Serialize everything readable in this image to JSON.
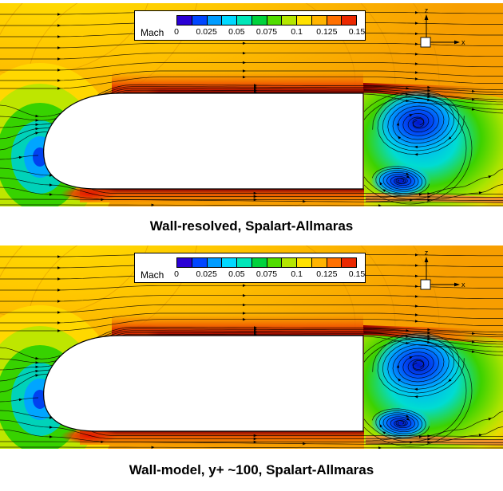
{
  "figure": {
    "colorbar": {
      "label": "Mach",
      "ticks": [
        "0",
        "0.025",
        "0.05",
        "0.075",
        "0.1",
        "0.125",
        "0.15"
      ],
      "segment_colors": [
        "#2A00D5",
        "#0046FF",
        "#009CFF",
        "#00D8FF",
        "#00E6B8",
        "#00D23C",
        "#50DC00",
        "#B4E600",
        "#FFE100",
        "#FFB400",
        "#FF7000",
        "#EB2800"
      ]
    },
    "axis_indicator": {
      "vertical": "z",
      "horizontal": "x"
    },
    "panels": [
      {
        "caption": "Wall-resolved, Spalart-Allmaras"
      },
      {
        "caption": "Wall-model, y+ ~100, Spalart-Allmaras"
      }
    ]
  },
  "chart_data": [
    {
      "type": "heatmap",
      "title": "Wall-resolved, Spalart-Allmaras",
      "variable": "Mach",
      "colormap": "rainbow",
      "levels": [
        0,
        0.025,
        0.05,
        0.075,
        0.1,
        0.125,
        0.15
      ],
      "axes": {
        "horizontal": "x",
        "vertical": "z"
      },
      "annotations": [
        "Mach contours with in-plane streamlines and velocity arrows around a rounded-nose ground-vehicle body",
        "freestream Mach ~0.125-0.15 (orange/red far field)",
        "stagnation region ahead of nose, Mach ~0 (blue/green bands)",
        "accelerated flow along roof and underbody, Mach ~0.15 (dark red layers)",
        "separated wake behind vertical base with two counter-rotating vortices, Mach ~0-0.05 (blue/cyan cores)"
      ]
    },
    {
      "type": "heatmap",
      "title": "Wall-model, y+ ~100, Spalart-Allmaras",
      "variable": "Mach",
      "colormap": "rainbow",
      "levels": [
        0,
        0.025,
        0.05,
        0.075,
        0.1,
        0.125,
        0.15
      ],
      "axes": {
        "horizontal": "x",
        "vertical": "z"
      },
      "annotations": [
        "Mach contours with in-plane streamlines and velocity arrows around a rounded-nose ground-vehicle body",
        "wake topology nearly identical to wall-resolved case",
        "two counter-rotating base vortices, Mach ~0-0.05 (blue/cyan cores)"
      ]
    }
  ]
}
